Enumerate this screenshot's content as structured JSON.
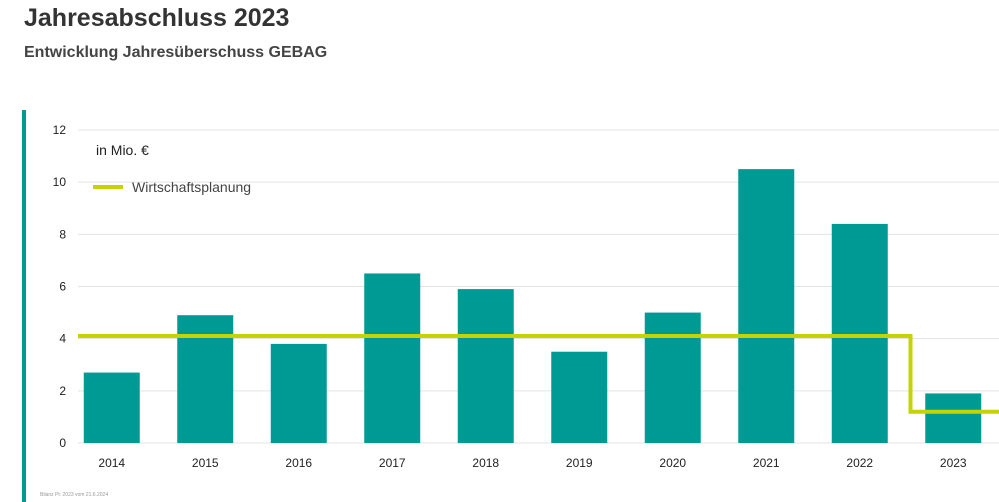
{
  "header": {
    "title": "Jahresabschluss 2023",
    "subtitle": "Entwicklung Jahresüberschuss GEBAG"
  },
  "footnote": "Bilanz Pt: 2023 vom 21.6.2024",
  "colors": {
    "bar": "#009a94",
    "plan_line": "#c5d400",
    "accent": "#009a94",
    "grid": "#e3e3e3",
    "text": "#222222"
  },
  "chart_data": {
    "type": "bar",
    "unit_label": "in Mio. €",
    "categories": [
      "2014",
      "2015",
      "2016",
      "2017",
      "2018",
      "2019",
      "2020",
      "2021",
      "2022",
      "2023"
    ],
    "series": [
      {
        "values": [
          2.7,
          4.9,
          3.8,
          6.5,
          5.9,
          3.5,
          5.0,
          10.5,
          8.4,
          1.9
        ]
      },
      {
        "name": "Wirtschaftsplanung",
        "type": "step-line",
        "values": [
          4.1,
          4.1,
          4.1,
          4.1,
          4.1,
          4.1,
          4.1,
          4.1,
          4.1,
          1.2
        ]
      }
    ],
    "ylim": [
      0,
      12
    ],
    "yticks": [
      0,
      2,
      4,
      6,
      8,
      10,
      12
    ],
    "grid": true,
    "legend_position": "top-left"
  }
}
